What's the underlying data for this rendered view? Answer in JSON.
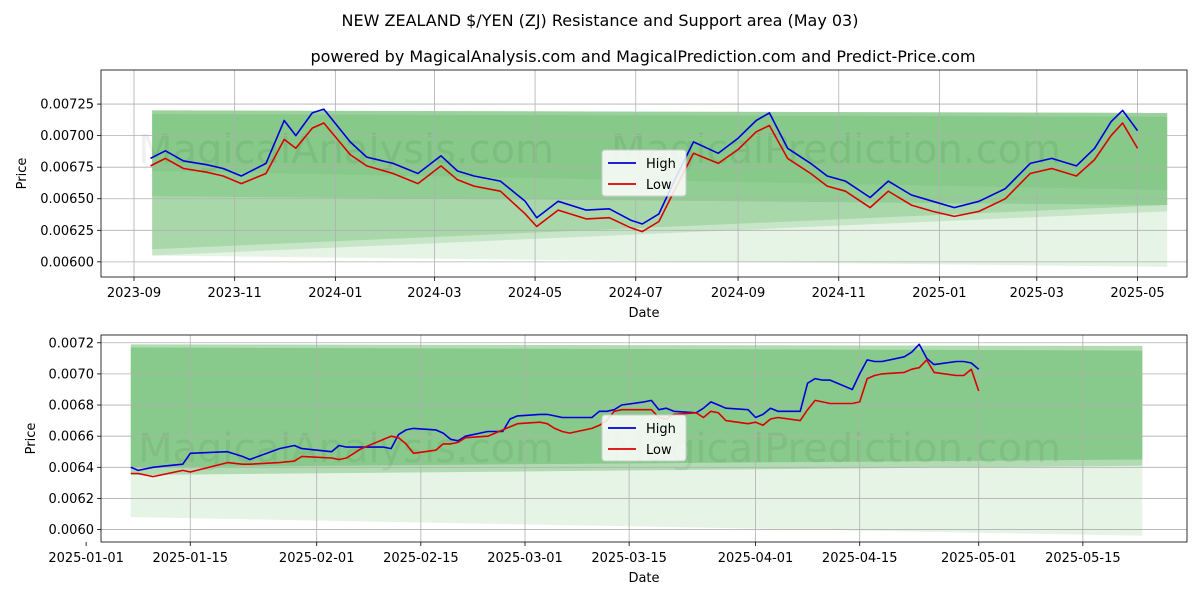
{
  "title": "NEW ZEALAND $/YEN (ZJ) Resistance and Support area (May 03)",
  "subtitle": "powered by MagicalAnalysis.com and MagicalPrediction.com and Predict-Price.com",
  "watermarks": [
    "MagicalAnalysis.com",
    "MagicalPrediction.com"
  ],
  "colors": {
    "high": "#0000dd",
    "low": "#dd0000",
    "band_green": "#4caf50",
    "grid": "#b0b0b0",
    "axis": "#000000"
  },
  "chart_data": [
    {
      "type": "line",
      "xlabel": "Date",
      "ylabel": "Price",
      "x_range": [
        "2023-08-12",
        "2025-05-31"
      ],
      "ylim": [
        0.00588,
        0.00752
      ],
      "x_ticks": [
        "2023-09",
        "2023-11",
        "2024-01",
        "2024-03",
        "2024-05",
        "2024-07",
        "2024-09",
        "2024-11",
        "2025-01",
        "2025-03",
        "2025-05"
      ],
      "x_tick_dates": [
        "2023-09-01",
        "2023-11-01",
        "2024-01-01",
        "2024-03-01",
        "2024-05-01",
        "2024-07-01",
        "2024-09-01",
        "2024-11-01",
        "2025-01-01",
        "2025-03-01",
        "2025-05-01"
      ],
      "y_ticks": [
        "0.00600",
        "0.00625",
        "0.00650",
        "0.00675",
        "0.00700",
        "0.00725"
      ],
      "y_tick_values": [
        0.006,
        0.00625,
        0.0065,
        0.00675,
        0.007,
        0.00725
      ],
      "grid": true,
      "legend": {
        "position": "center",
        "entries": [
          "High",
          "Low"
        ]
      },
      "bands": [
        {
          "start": "2023-09-12",
          "end": "2025-05-19",
          "upper": [
            0.0072,
            0.00718
          ],
          "lower": [
            0.00605,
            0.00596
          ],
          "opacity": 0.14
        },
        {
          "start": "2023-09-12",
          "end": "2025-05-19",
          "upper": [
            0.0072,
            0.00718
          ],
          "lower": [
            0.00605,
            0.0064
          ],
          "opacity": 0.2
        },
        {
          "start": "2023-09-12",
          "end": "2025-05-19",
          "upper": [
            0.0072,
            0.00718
          ],
          "lower": [
            0.0061,
            0.00645
          ],
          "opacity": 0.25
        },
        {
          "start": "2023-09-12",
          "end": "2025-05-19",
          "upper": [
            0.00717,
            0.00715
          ],
          "lower": [
            0.00652,
            0.00645
          ],
          "opacity": 0.25
        },
        {
          "start": "2023-09-12",
          "end": "2025-05-19",
          "upper": [
            0.0072,
            0.00718
          ],
          "lower": [
            0.00672,
            0.00657
          ],
          "opacity": 0.15
        }
      ],
      "series": [
        {
          "name": "High",
          "x": [
            "2023-09-11",
            "2023-09-20",
            "2023-10-01",
            "2023-10-15",
            "2023-10-25",
            "2023-11-05",
            "2023-11-20",
            "2023-12-01",
            "2023-12-08",
            "2023-12-18",
            "2023-12-25",
            "2024-01-10",
            "2024-01-20",
            "2024-02-05",
            "2024-02-20",
            "2024-03-05",
            "2024-03-15",
            "2024-03-25",
            "2024-04-10",
            "2024-04-25",
            "2024-05-02",
            "2024-05-15",
            "2024-06-01",
            "2024-06-15",
            "2024-06-28",
            "2024-07-05",
            "2024-07-15",
            "2024-07-25",
            "2024-08-05",
            "2024-08-20",
            "2024-09-01",
            "2024-09-12",
            "2024-09-20",
            "2024-10-01",
            "2024-10-15",
            "2024-10-25",
            "2024-11-05",
            "2024-11-20",
            "2024-12-01",
            "2024-12-15",
            "2024-12-28",
            "2025-01-10",
            "2025-01-25",
            "2025-02-10",
            "2025-02-25",
            "2025-03-10",
            "2025-03-25",
            "2025-04-05",
            "2025-04-15",
            "2025-04-22",
            "2025-05-01"
          ],
          "values": [
            0.00682,
            0.00688,
            0.0068,
            0.00677,
            0.00674,
            0.00668,
            0.00678,
            0.00712,
            0.007,
            0.00718,
            0.00721,
            0.00695,
            0.00683,
            0.00678,
            0.0067,
            0.00684,
            0.00672,
            0.00668,
            0.00664,
            0.00648,
            0.00635,
            0.00648,
            0.00641,
            0.00642,
            0.00633,
            0.0063,
            0.00638,
            0.00666,
            0.00695,
            0.00686,
            0.00698,
            0.00712,
            0.00718,
            0.0069,
            0.00678,
            0.00668,
            0.00664,
            0.00651,
            0.00664,
            0.00653,
            0.00648,
            0.00643,
            0.00648,
            0.00658,
            0.00678,
            0.00682,
            0.00676,
            0.0069,
            0.00711,
            0.0072,
            0.00704
          ]
        },
        {
          "name": "Low",
          "x": [
            "2023-09-11",
            "2023-09-20",
            "2023-10-01",
            "2023-10-15",
            "2023-10-25",
            "2023-11-05",
            "2023-11-20",
            "2023-12-01",
            "2023-12-08",
            "2023-12-18",
            "2023-12-25",
            "2024-01-10",
            "2024-01-20",
            "2024-02-05",
            "2024-02-20",
            "2024-03-05",
            "2024-03-15",
            "2024-03-25",
            "2024-04-10",
            "2024-04-25",
            "2024-05-02",
            "2024-05-15",
            "2024-06-01",
            "2024-06-15",
            "2024-06-28",
            "2024-07-05",
            "2024-07-15",
            "2024-07-25",
            "2024-08-05",
            "2024-08-20",
            "2024-09-01",
            "2024-09-12",
            "2024-09-20",
            "2024-10-01",
            "2024-10-15",
            "2024-10-25",
            "2024-11-05",
            "2024-11-20",
            "2024-12-01",
            "2024-12-15",
            "2024-12-28",
            "2025-01-10",
            "2025-01-25",
            "2025-02-10",
            "2025-02-25",
            "2025-03-10",
            "2025-03-25",
            "2025-04-05",
            "2025-04-15",
            "2025-04-22",
            "2025-05-01"
          ],
          "values": [
            0.00676,
            0.00682,
            0.00674,
            0.00671,
            0.00668,
            0.00662,
            0.0067,
            0.00697,
            0.0069,
            0.00706,
            0.0071,
            0.00685,
            0.00676,
            0.0067,
            0.00662,
            0.00676,
            0.00665,
            0.0066,
            0.00656,
            0.00638,
            0.00628,
            0.00641,
            0.00634,
            0.00635,
            0.00627,
            0.00624,
            0.00632,
            0.00658,
            0.00686,
            0.00678,
            0.00689,
            0.00703,
            0.00708,
            0.00682,
            0.0067,
            0.0066,
            0.00656,
            0.00643,
            0.00656,
            0.00645,
            0.0064,
            0.00636,
            0.0064,
            0.0065,
            0.0067,
            0.00674,
            0.00668,
            0.00681,
            0.007,
            0.0071,
            0.0069
          ]
        }
      ]
    },
    {
      "type": "line",
      "xlabel": "Date",
      "ylabel": "Price",
      "x_range": [
        "2025-01-03",
        "2025-05-29"
      ],
      "ylim": [
        0.00592,
        0.00725
      ],
      "x_ticks": [
        "2025-01-01",
        "2025-01-15",
        "2025-02-01",
        "2025-02-15",
        "2025-03-01",
        "2025-03-15",
        "2025-04-01",
        "2025-04-15",
        "2025-05-01",
        "2025-05-15"
      ],
      "x_tick_dates": [
        "2025-01-01",
        "2025-01-15",
        "2025-02-01",
        "2025-02-15",
        "2025-03-01",
        "2025-03-15",
        "2025-04-01",
        "2025-04-15",
        "2025-05-01",
        "2025-05-15"
      ],
      "y_ticks": [
        "0.0060",
        "0.0062",
        "0.0064",
        "0.0066",
        "0.0068",
        "0.0070",
        "0.0072"
      ],
      "y_tick_values": [
        0.006,
        0.0062,
        0.0064,
        0.0066,
        0.0068,
        0.007,
        0.0072
      ],
      "grid": true,
      "legend": {
        "position": "center",
        "entries": [
          "High",
          "Low"
        ]
      },
      "bands": [
        {
          "start": "2025-01-07",
          "end": "2025-05-23",
          "upper": [
            0.00719,
            0.00718
          ],
          "lower": [
            0.00608,
            0.00596
          ],
          "opacity": 0.14
        },
        {
          "start": "2025-01-07",
          "end": "2025-05-23",
          "upper": [
            0.00719,
            0.00718
          ],
          "lower": [
            0.00635,
            0.00641
          ],
          "opacity": 0.35
        },
        {
          "start": "2025-01-07",
          "end": "2025-05-23",
          "upper": [
            0.00717,
            0.00715
          ],
          "lower": [
            0.0064,
            0.00645
          ],
          "opacity": 0.4
        }
      ],
      "series": [
        {
          "name": "High",
          "x": [
            "2025-01-07",
            "2025-01-08",
            "2025-01-10",
            "2025-01-12",
            "2025-01-14",
            "2025-01-15",
            "2025-01-20",
            "2025-01-22",
            "2025-01-23",
            "2025-01-27",
            "2025-01-29",
            "2025-01-30",
            "2025-02-03",
            "2025-02-04",
            "2025-02-05",
            "2025-02-06",
            "2025-02-07",
            "2025-02-10",
            "2025-02-11",
            "2025-02-12",
            "2025-02-13",
            "2025-02-14",
            "2025-02-17",
            "2025-02-18",
            "2025-02-19",
            "2025-02-20",
            "2025-02-21",
            "2025-02-24",
            "2025-02-25",
            "2025-02-26",
            "2025-02-27",
            "2025-02-28",
            "2025-03-03",
            "2025-03-04",
            "2025-03-05",
            "2025-03-06",
            "2025-03-07",
            "2025-03-10",
            "2025-03-11",
            "2025-03-12",
            "2025-03-13",
            "2025-03-14",
            "2025-03-17",
            "2025-03-18",
            "2025-03-19",
            "2025-03-20",
            "2025-03-21",
            "2025-03-24",
            "2025-03-25",
            "2025-03-26",
            "2025-03-27",
            "2025-03-28",
            "2025-03-31",
            "2025-04-01",
            "2025-04-02",
            "2025-04-03",
            "2025-04-04",
            "2025-04-07",
            "2025-04-08",
            "2025-04-09",
            "2025-04-10",
            "2025-04-11",
            "2025-04-14",
            "2025-04-15",
            "2025-04-16",
            "2025-04-17",
            "2025-04-18",
            "2025-04-21",
            "2025-04-22",
            "2025-04-23",
            "2025-04-24",
            "2025-04-25",
            "2025-04-28",
            "2025-04-29",
            "2025-04-30",
            "2025-05-01"
          ],
          "values": [
            0.0064,
            0.00638,
            0.0064,
            0.00641,
            0.00642,
            0.00649,
            0.0065,
            0.00647,
            0.00645,
            0.00652,
            0.00654,
            0.00652,
            0.0065,
            0.00654,
            0.00653,
            0.00653,
            0.00653,
            0.00653,
            0.00652,
            0.00661,
            0.00664,
            0.00665,
            0.00664,
            0.00662,
            0.00658,
            0.00657,
            0.0066,
            0.00663,
            0.00663,
            0.00663,
            0.00671,
            0.00673,
            0.00674,
            0.00674,
            0.00673,
            0.00672,
            0.00672,
            0.00672,
            0.00676,
            0.00676,
            0.00677,
            0.0068,
            0.00682,
            0.00683,
            0.00677,
            0.00678,
            0.00676,
            0.00675,
            0.00678,
            0.00682,
            0.0068,
            0.00678,
            0.00677,
            0.00672,
            0.00674,
            0.00678,
            0.00676,
            0.00676,
            0.00694,
            0.00697,
            0.00696,
            0.00696,
            0.0069,
            0.007,
            0.00709,
            0.00708,
            0.00708,
            0.00711,
            0.00714,
            0.00719,
            0.0071,
            0.00706,
            0.00708,
            0.00708,
            0.00707,
            0.00703
          ]
        },
        {
          "name": "Low",
          "x": [
            "2025-01-07",
            "2025-01-08",
            "2025-01-10",
            "2025-01-12",
            "2025-01-14",
            "2025-01-15",
            "2025-01-20",
            "2025-01-22",
            "2025-01-23",
            "2025-01-27",
            "2025-01-29",
            "2025-01-30",
            "2025-02-03",
            "2025-02-04",
            "2025-02-05",
            "2025-02-06",
            "2025-02-07",
            "2025-02-10",
            "2025-02-11",
            "2025-02-12",
            "2025-02-13",
            "2025-02-14",
            "2025-02-17",
            "2025-02-18",
            "2025-02-19",
            "2025-02-20",
            "2025-02-21",
            "2025-02-24",
            "2025-02-25",
            "2025-02-26",
            "2025-02-27",
            "2025-02-28",
            "2025-03-03",
            "2025-03-04",
            "2025-03-05",
            "2025-03-06",
            "2025-03-07",
            "2025-03-10",
            "2025-03-11",
            "2025-03-12",
            "2025-03-13",
            "2025-03-14",
            "2025-03-17",
            "2025-03-18",
            "2025-03-19",
            "2025-03-20",
            "2025-03-21",
            "2025-03-24",
            "2025-03-25",
            "2025-03-26",
            "2025-03-27",
            "2025-03-28",
            "2025-03-31",
            "2025-04-01",
            "2025-04-02",
            "2025-04-03",
            "2025-04-04",
            "2025-04-07",
            "2025-04-08",
            "2025-04-09",
            "2025-04-10",
            "2025-04-11",
            "2025-04-14",
            "2025-04-15",
            "2025-04-16",
            "2025-04-17",
            "2025-04-18",
            "2025-04-21",
            "2025-04-22",
            "2025-04-23",
            "2025-04-24",
            "2025-04-25",
            "2025-04-28",
            "2025-04-29",
            "2025-04-30",
            "2025-05-01"
          ],
          "values": [
            0.00636,
            0.00636,
            0.00634,
            0.00636,
            0.00638,
            0.00637,
            0.00643,
            0.00642,
            0.00642,
            0.00643,
            0.00644,
            0.00647,
            0.00646,
            0.00645,
            0.00646,
            0.00649,
            0.00652,
            0.00658,
            0.0066,
            0.00659,
            0.00655,
            0.00649,
            0.00651,
            0.00655,
            0.00655,
            0.00656,
            0.00659,
            0.0066,
            0.00662,
            0.00664,
            0.00666,
            0.00668,
            0.00669,
            0.00668,
            0.00665,
            0.00663,
            0.00662,
            0.00665,
            0.00667,
            0.0067,
            0.00676,
            0.00677,
            0.00677,
            0.00677,
            0.00672,
            0.00671,
            0.00674,
            0.00675,
            0.00672,
            0.00676,
            0.00675,
            0.0067,
            0.00668,
            0.00669,
            0.00667,
            0.00671,
            0.00672,
            0.0067,
            0.00677,
            0.00683,
            0.00682,
            0.00681,
            0.00681,
            0.00682,
            0.00697,
            0.00699,
            0.007,
            0.00701,
            0.00703,
            0.00704,
            0.00709,
            0.00701,
            0.00699,
            0.00699,
            0.00703,
            0.00689
          ]
        }
      ]
    }
  ]
}
